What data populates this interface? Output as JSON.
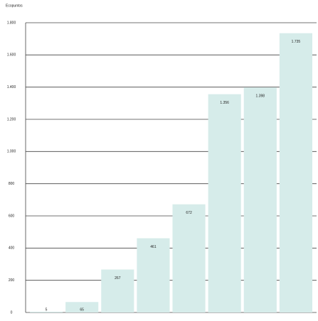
{
  "chart_data": {
    "type": "bar",
    "title": "Ecopuntos",
    "values": [
      5,
      65,
      267,
      461,
      672,
      1356,
      1398,
      1735
    ],
    "value_labels": [
      "5",
      "65",
      "267",
      "461",
      "672",
      "1.356",
      "1.398",
      "1.735"
    ],
    "color": "#d6ecea",
    "ylim": [
      0,
      1800
    ],
    "yticks": [
      0,
      200,
      400,
      600,
      800,
      {
        "value": 1000,
        "label": "1.000"
      },
      {
        "value": 1200,
        "label": "1.200"
      },
      {
        "value": 1400,
        "label": "1.400"
      },
      {
        "value": 1600,
        "label": "1.600"
      },
      {
        "value": 1800,
        "label": "1.800"
      }
    ],
    "grid": true
  }
}
